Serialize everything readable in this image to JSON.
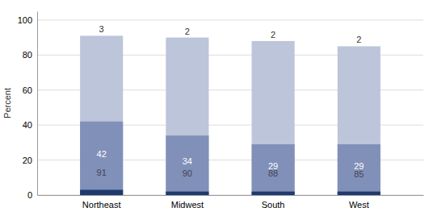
{
  "chart_data": {
    "type": "bar",
    "categories": [
      "Northeast",
      "Midwest",
      "South",
      "West"
    ],
    "series": [
      {
        "color": "#bcc5d9",
        "values": [
          91,
          90,
          88,
          85
        ]
      },
      {
        "color": "#8190b8",
        "values": [
          42,
          34,
          29,
          29
        ]
      },
      {
        "color": "#1e3a6e",
        "values": [
          3,
          2,
          2,
          2
        ]
      }
    ],
    "stacked": false,
    "data_labels": true,
    "ylabel": "Percent",
    "ylim": [
      0,
      105
    ],
    "yticks": [
      0,
      20,
      40,
      60,
      80,
      100
    ],
    "grid": true
  }
}
